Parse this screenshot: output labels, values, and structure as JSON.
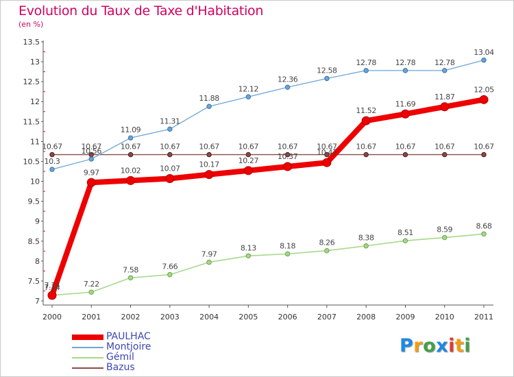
{
  "chart_data": {
    "type": "line",
    "title": "Evolution du Taux de Taxe d'Habitation",
    "subtitle": "(en %)",
    "x": [
      "2000",
      "2001",
      "2002",
      "2003",
      "2004",
      "2005",
      "2006",
      "2007",
      "2008",
      "2009",
      "2010",
      "2011"
    ],
    "ylim": [
      7,
      13.5
    ],
    "yticks": [
      "7",
      "7.5",
      "8",
      "8.5",
      "9",
      "9.5",
      "10",
      "10.5",
      "11",
      "11.5",
      "12",
      "12.5",
      "13",
      "13.5"
    ],
    "grid": false,
    "legend_position": "bottom-left",
    "series": [
      {
        "name": "PAULHAC",
        "color": "#ee0000",
        "values": [
          7.14,
          9.97,
          10.02,
          10.07,
          10.17,
          10.27,
          10.37,
          10.47,
          11.52,
          11.69,
          11.87,
          12.05
        ],
        "labels": [
          "7.14",
          "9.97",
          "10.02",
          "10.07",
          "10.17",
          "10.27",
          "10.37",
          "10.47",
          "11.52",
          "11.69",
          "11.87",
          "12.05"
        ]
      },
      {
        "name": "Montjoire",
        "color": "#6aa5d8",
        "values": [
          10.3,
          10.56,
          11.09,
          11.31,
          11.88,
          12.12,
          12.36,
          12.58,
          12.78,
          12.78,
          12.78,
          13.04
        ],
        "labels": [
          "10.3",
          "10.56",
          "11.09",
          "11.31",
          "11.88",
          "12.12",
          "12.36",
          "12.58",
          "12.78",
          "12.78",
          "12.78",
          "13.04"
        ]
      },
      {
        "name": "Gémil",
        "color": "#a6d88a",
        "values": [
          7.14,
          7.22,
          7.58,
          7.66,
          7.97,
          8.13,
          8.18,
          8.26,
          8.38,
          8.51,
          8.59,
          8.68
        ],
        "labels": [
          "7.14",
          "7.22",
          "7.58",
          "7.66",
          "7.97",
          "8.13",
          "8.18",
          "8.26",
          "8.38",
          "8.51",
          "8.59",
          "8.68"
        ]
      },
      {
        "name": "Bazus",
        "color": "#8a4a4a",
        "values": [
          10.67,
          10.67,
          10.67,
          10.67,
          10.67,
          10.67,
          10.67,
          10.67,
          10.67,
          10.67,
          10.67,
          10.67
        ],
        "labels": [
          "10.67",
          "10.67",
          "10.67",
          "10.67",
          "10.67",
          "10.67",
          "10.67",
          "10.67",
          "10.67",
          "10.67",
          "10.67",
          "10.67"
        ]
      }
    ]
  },
  "branding": {
    "logo_letters": [
      "P",
      "r",
      "o",
      "x",
      "i",
      "t",
      "i"
    ],
    "logo_colors": [
      "#1e88e5",
      "#f39c12",
      "#43a047",
      "#1e88e5",
      "#e53935",
      "#f39c12",
      "#43a047"
    ]
  }
}
